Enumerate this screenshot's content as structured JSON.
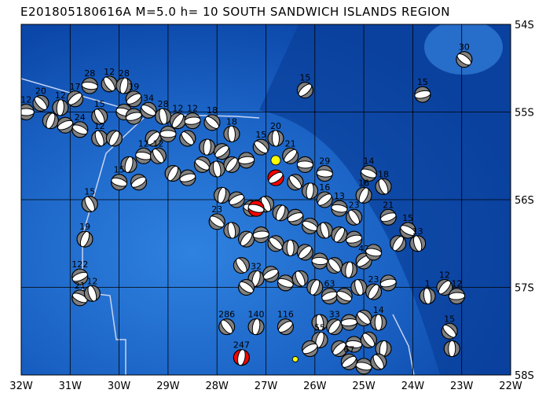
{
  "title": "E201805180616A M=5.0 h= 10 SOUTH SANDWICH ISLANDS REGION",
  "map": {
    "lon_range": [
      -32,
      -22
    ],
    "lat_range": [
      -58,
      -54
    ],
    "lon_labels": [
      "32W",
      "31W",
      "30W",
      "29W",
      "28W",
      "27W",
      "26W",
      "25W",
      "24W",
      "23W",
      "22W"
    ],
    "lat_labels": [
      "54S",
      "55S",
      "56S",
      "57S",
      "58S"
    ],
    "colors": {
      "ocean_deep": "#0b47a8",
      "ocean_shallow": "#2a7ad8",
      "plate_boundary": "#c8d4f0",
      "mechanism_fill": "#808080",
      "highlight": "#ff0000",
      "epicenter": "#ffff00"
    }
  },
  "events": [
    [
      -31.9,
      -55.0,
      "12"
    ],
    [
      -31.6,
      -54.9,
      "20"
    ],
    [
      -31.2,
      -54.95,
      "12"
    ],
    [
      -30.9,
      -54.85,
      "17"
    ],
    [
      -30.6,
      -54.7,
      "28"
    ],
    [
      -30.2,
      -54.68,
      "12"
    ],
    [
      -29.9,
      -54.7,
      "28"
    ],
    [
      -29.7,
      -54.85,
      "19"
    ],
    [
      -29.9,
      -55.0,
      ""
    ],
    [
      -30.4,
      -55.05,
      "15"
    ],
    [
      -31.4,
      -55.1,
      ""
    ],
    [
      -31.1,
      -55.15,
      ""
    ],
    [
      -30.8,
      -55.2,
      "24"
    ],
    [
      -30.4,
      -55.3,
      "12"
    ],
    [
      -30.1,
      -55.3,
      ""
    ],
    [
      -29.7,
      -55.05,
      ""
    ],
    [
      -29.4,
      -54.98,
      "34"
    ],
    [
      -29.1,
      -55.05,
      "28"
    ],
    [
      -28.8,
      -55.1,
      "12"
    ],
    [
      -28.5,
      -55.1,
      "12"
    ],
    [
      -28.1,
      -55.12,
      "18"
    ],
    [
      -27.7,
      -55.25,
      "18"
    ],
    [
      -29.3,
      -55.3,
      ""
    ],
    [
      -29.0,
      -55.25,
      ""
    ],
    [
      -28.6,
      -55.3,
      ""
    ],
    [
      -28.2,
      -55.4,
      ""
    ],
    [
      -27.9,
      -55.45,
      ""
    ],
    [
      -29.5,
      -55.5,
      "12"
    ],
    [
      -29.2,
      -55.5,
      "12"
    ],
    [
      -29.8,
      -55.6,
      ""
    ],
    [
      -29.6,
      -55.8,
      ""
    ],
    [
      -30.0,
      -55.8,
      "15"
    ],
    [
      -30.6,
      -56.05,
      "15"
    ],
    [
      -30.7,
      -56.45,
      "19"
    ],
    [
      -30.8,
      -56.88,
      "122"
    ],
    [
      -30.8,
      -57.12,
      "21"
    ],
    [
      -30.55,
      -57.07,
      "12"
    ],
    [
      -28.9,
      -55.7,
      ""
    ],
    [
      -28.6,
      -55.75,
      ""
    ],
    [
      -28.3,
      -55.6,
      ""
    ],
    [
      -28.0,
      -55.65,
      ""
    ],
    [
      -27.7,
      -55.6,
      ""
    ],
    [
      -27.4,
      -55.55,
      ""
    ],
    [
      -27.1,
      -55.4,
      "15"
    ],
    [
      -26.8,
      -55.3,
      "20"
    ],
    [
      -26.5,
      -55.5,
      "21"
    ],
    [
      -26.2,
      -55.6,
      ""
    ],
    [
      -26.4,
      -55.8,
      ""
    ],
    [
      -26.1,
      -55.9,
      ""
    ],
    [
      -25.8,
      -56.0,
      "16"
    ],
    [
      -25.5,
      -56.1,
      "13"
    ],
    [
      -25.2,
      -56.2,
      "23"
    ],
    [
      -27.9,
      -55.95,
      ""
    ],
    [
      -27.6,
      -56.0,
      ""
    ],
    [
      -27.3,
      -56.1,
      ""
    ],
    [
      -27.0,
      -56.05,
      ""
    ],
    [
      -26.7,
      -56.15,
      ""
    ],
    [
      -26.4,
      -56.2,
      ""
    ],
    [
      -26.1,
      -56.3,
      ""
    ],
    [
      -25.8,
      -56.35,
      ""
    ],
    [
      -25.5,
      -56.4,
      ""
    ],
    [
      -25.2,
      -56.45,
      ""
    ],
    [
      -28.0,
      -56.25,
      "23"
    ],
    [
      -27.7,
      -56.35,
      ""
    ],
    [
      -27.4,
      -56.45,
      ""
    ],
    [
      -27.1,
      -56.4,
      ""
    ],
    [
      -26.8,
      -56.5,
      ""
    ],
    [
      -26.5,
      -56.55,
      ""
    ],
    [
      -26.2,
      -56.6,
      ""
    ],
    [
      -25.9,
      -56.7,
      ""
    ],
    [
      -25.6,
      -56.75,
      ""
    ],
    [
      -25.3,
      -56.8,
      ""
    ],
    [
      -25.0,
      -56.7,
      "42"
    ],
    [
      -24.8,
      -56.6,
      ""
    ],
    [
      -27.5,
      -56.75,
      ""
    ],
    [
      -27.2,
      -56.9,
      "32"
    ],
    [
      -26.9,
      -56.85,
      ""
    ],
    [
      -26.6,
      -56.95,
      ""
    ],
    [
      -26.3,
      -56.9,
      ""
    ],
    [
      -26.0,
      -57.0,
      ""
    ],
    [
      -25.7,
      -57.1,
      "63"
    ],
    [
      -25.4,
      -57.1,
      ""
    ],
    [
      -25.1,
      -57.0,
      ""
    ],
    [
      -24.8,
      -57.05,
      "23"
    ],
    [
      -24.5,
      -56.95,
      ""
    ],
    [
      -27.4,
      -57.0,
      ""
    ],
    [
      -25.9,
      -57.4,
      ""
    ],
    [
      -25.6,
      -57.45,
      "33"
    ],
    [
      -25.3,
      -57.4,
      ""
    ],
    [
      -25.0,
      -57.35,
      ""
    ],
    [
      -24.7,
      -57.4,
      "14"
    ],
    [
      -25.5,
      -57.7,
      ""
    ],
    [
      -25.2,
      -57.65,
      ""
    ],
    [
      -24.9,
      -57.6,
      ""
    ],
    [
      -24.6,
      -57.7,
      ""
    ],
    [
      -25.3,
      -57.85,
      "67"
    ],
    [
      -25.0,
      -57.9,
      ""
    ],
    [
      -24.7,
      -57.85,
      ""
    ],
    [
      -25.9,
      -57.6,
      "55"
    ],
    [
      -26.1,
      -57.7,
      ""
    ],
    [
      -24.9,
      -55.7,
      "14"
    ],
    [
      -24.6,
      -55.85,
      "18"
    ],
    [
      -25.0,
      -55.95,
      "16"
    ],
    [
      -24.5,
      -56.2,
      "21"
    ],
    [
      -24.1,
      -56.35,
      "15"
    ],
    [
      -23.9,
      -56.5,
      "13"
    ],
    [
      -24.3,
      -56.5,
      ""
    ],
    [
      -23.8,
      -54.8,
      "15"
    ],
    [
      -22.95,
      -54.4,
      "30"
    ],
    [
      -23.7,
      -57.1,
      "1"
    ],
    [
      -23.35,
      -57.0,
      "12"
    ],
    [
      -23.1,
      -57.1,
      "12"
    ],
    [
      -23.25,
      -57.5,
      "15"
    ],
    [
      -23.2,
      -57.7,
      ""
    ],
    [
      -26.2,
      -54.75,
      "15"
    ],
    [
      -25.8,
      -55.7,
      "29"
    ],
    [
      -27.8,
      -57.45,
      "286"
    ],
    [
      -27.2,
      -57.45,
      "140"
    ],
    [
      -26.6,
      -57.45,
      "116"
    ]
  ],
  "highlighted_events": [
    [
      -27.5,
      -57.8,
      "247"
    ],
    [
      -26.8,
      -55.75,
      ""
    ],
    [
      -27.2,
      -56.1,
      ""
    ]
  ],
  "epicenters": [
    [
      -26.8,
      -55.55
    ],
    [
      -26.4,
      -57.82
    ]
  ]
}
